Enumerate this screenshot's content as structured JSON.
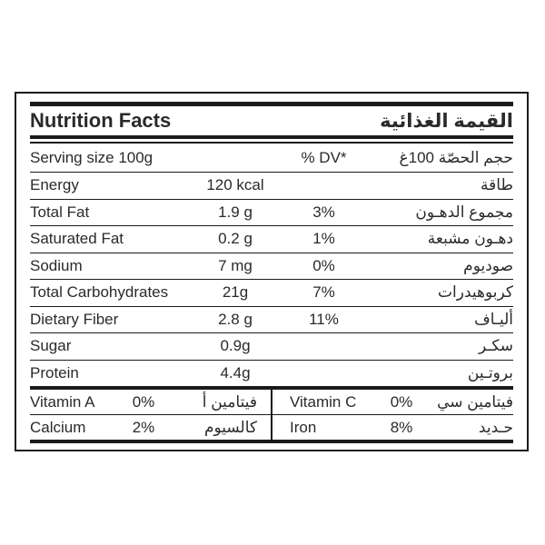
{
  "label": {
    "title": {
      "en": "Nutrition Facts",
      "ar": "القيمة الغذائية"
    },
    "serving": {
      "en": "Serving size 100g",
      "dv_header": "% DV*",
      "ar": "حجم الحصّة 100غ"
    },
    "rows": [
      {
        "en": "Energy",
        "amount": "120 kcal",
        "dv": "",
        "ar": "طاقة"
      },
      {
        "en": "Total Fat",
        "amount": "1.9 g",
        "dv": "3%",
        "ar": "مجموع الدهـون"
      },
      {
        "en": "Saturated Fat",
        "amount": "0.2 g",
        "dv": "1%",
        "ar": "دهـون مشبعة"
      },
      {
        "en": "Sodium",
        "amount": "7 mg",
        "dv": "0%",
        "ar": "صوديوم"
      },
      {
        "en": "Total Carbohydrates",
        "amount": "21g",
        "dv": "7%",
        "ar": "كربوهيدرات"
      },
      {
        "en": "Dietary Fiber",
        "amount": "2.8 g",
        "dv": "11%",
        "ar": "أليـاف"
      },
      {
        "en": "Sugar",
        "amount": "0.9g",
        "dv": "",
        "ar": "سكـر"
      },
      {
        "en": "Protein",
        "amount": "4.4g",
        "dv": "",
        "ar": "بروتـين"
      }
    ],
    "micros": {
      "row1": {
        "left": {
          "en": "Vitamin A",
          "dv": "0%",
          "ar": "فيتامين أ"
        },
        "right": {
          "en": "Vitamin C",
          "dv": "0%",
          "ar": "فيتامين سي"
        }
      },
      "row2": {
        "left": {
          "en": "Calcium",
          "dv": "2%",
          "ar": "كالسيوم"
        },
        "right": {
          "en": "Iron",
          "dv": "8%",
          "ar": "حـديد"
        }
      }
    },
    "colors": {
      "text": "#2b2a28",
      "rule": "#1c1b1a",
      "background": "#ffffff"
    }
  }
}
